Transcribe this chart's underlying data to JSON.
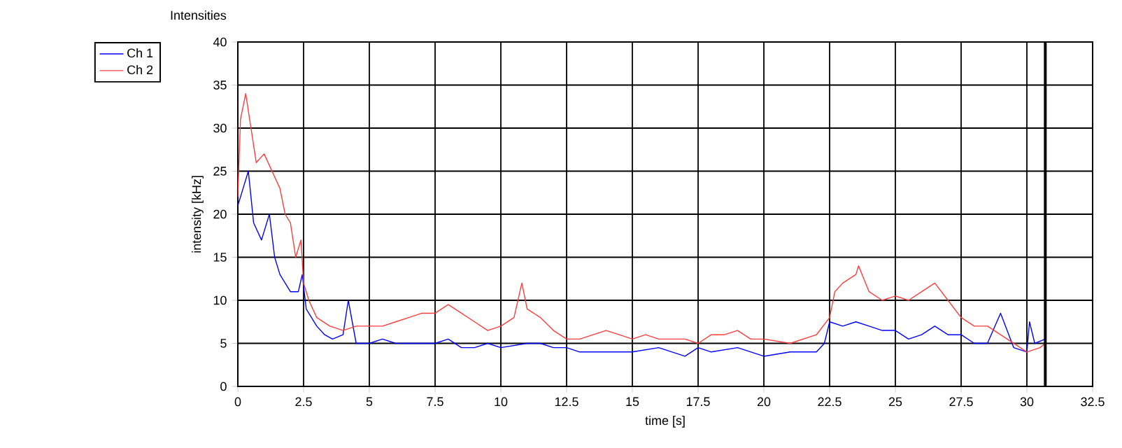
{
  "chart_data": {
    "type": "line",
    "title": "Intensities",
    "xlabel": "time [s]",
    "ylabel": "intensity [kHz]",
    "xlim": [
      0,
      32.5
    ],
    "ylim": [
      0,
      40
    ],
    "xticks": [
      0,
      2.5,
      5,
      7.5,
      10,
      12.5,
      15,
      17.5,
      20,
      22.5,
      25,
      27.5,
      30,
      32.5
    ],
    "yticks": [
      0,
      5,
      10,
      15,
      20,
      25,
      30,
      35,
      40
    ],
    "grid": true,
    "legend": "top left",
    "marker": "none",
    "line_style": "solid",
    "ref_lines": [
      {
        "axis": "x",
        "value": 30.7,
        "color": "#000000"
      }
    ],
    "series": [
      {
        "name": "Ch 1",
        "color": "#0000ff",
        "x": [
          0,
          0.2,
          0.4,
          0.6,
          0.9,
          1.2,
          1.4,
          1.6,
          2.0,
          2.3,
          2.45,
          2.6,
          2.8,
          3.0,
          3.3,
          3.6,
          4.0,
          4.2,
          4.5,
          5.0,
          5.5,
          6,
          7,
          7.5,
          8,
          8.5,
          9,
          9.5,
          10,
          11,
          11.5,
          12,
          12.5,
          13,
          14,
          15,
          16,
          17,
          17.5,
          18,
          19,
          20,
          21,
          22,
          22.3,
          22.5,
          23,
          23.5,
          24,
          24.5,
          25,
          25.5,
          26,
          26.5,
          27,
          27.5,
          28,
          28.5,
          29,
          29.5,
          30,
          30.1,
          30.3,
          30.7
        ],
        "values": [
          21,
          23,
          25,
          19,
          17,
          20,
          15,
          13,
          11,
          11,
          13,
          9,
          8,
          7,
          6,
          5.5,
          6,
          10,
          5,
          5,
          5.5,
          5,
          5,
          5,
          5.5,
          4.5,
          4.5,
          5,
          4.5,
          5,
          5,
          4.5,
          4.5,
          4,
          4,
          4,
          4.5,
          3.5,
          4.5,
          4,
          4.5,
          3.5,
          4,
          4,
          5,
          7.5,
          7,
          7.5,
          7,
          6.5,
          6.5,
          5.5,
          6,
          7,
          6,
          6,
          5,
          5,
          8.5,
          4.5,
          4,
          7.5,
          5,
          5.5
        ]
      },
      {
        "name": "Ch 2",
        "color": "#ff3c3c",
        "x": [
          0,
          0.1,
          0.3,
          0.5,
          0.7,
          1.0,
          1.3,
          1.6,
          1.8,
          2.0,
          2.2,
          2.4,
          2.5,
          2.7,
          3.0,
          3.5,
          4.0,
          4.5,
          5.0,
          5.5,
          6.0,
          6.5,
          7.0,
          7.5,
          8.0,
          8.5,
          9.0,
          9.5,
          10.0,
          10.5,
          10.8,
          11.0,
          11.5,
          12.0,
          12.5,
          13.0,
          14.0,
          14.5,
          15.0,
          15.5,
          16,
          17,
          17.5,
          18,
          18.5,
          19,
          19.5,
          20,
          21,
          22,
          22.5,
          22.7,
          23,
          23.5,
          23.6,
          24,
          24.5,
          25,
          25.5,
          26,
          26.5,
          27,
          27.5,
          28,
          28.5,
          29,
          29.5,
          30,
          30.5,
          30.7
        ],
        "values": [
          22,
          31,
          34,
          30,
          26,
          27,
          25,
          23,
          20,
          19,
          15,
          17,
          12,
          10,
          8,
          7,
          6.5,
          7,
          7,
          7,
          7.5,
          8,
          8.5,
          8.5,
          9.5,
          8.5,
          7.5,
          6.5,
          7,
          8,
          12,
          9,
          8,
          6.5,
          5.5,
          5.5,
          6.5,
          6,
          5.5,
          6,
          5.5,
          5.5,
          5,
          6,
          6,
          6.5,
          5.5,
          5.5,
          5,
          6,
          8,
          11,
          12,
          13,
          14,
          11,
          10,
          10.5,
          10,
          11,
          12,
          10,
          8,
          7,
          7,
          6,
          5,
          4,
          4.5,
          5
        ]
      }
    ]
  }
}
